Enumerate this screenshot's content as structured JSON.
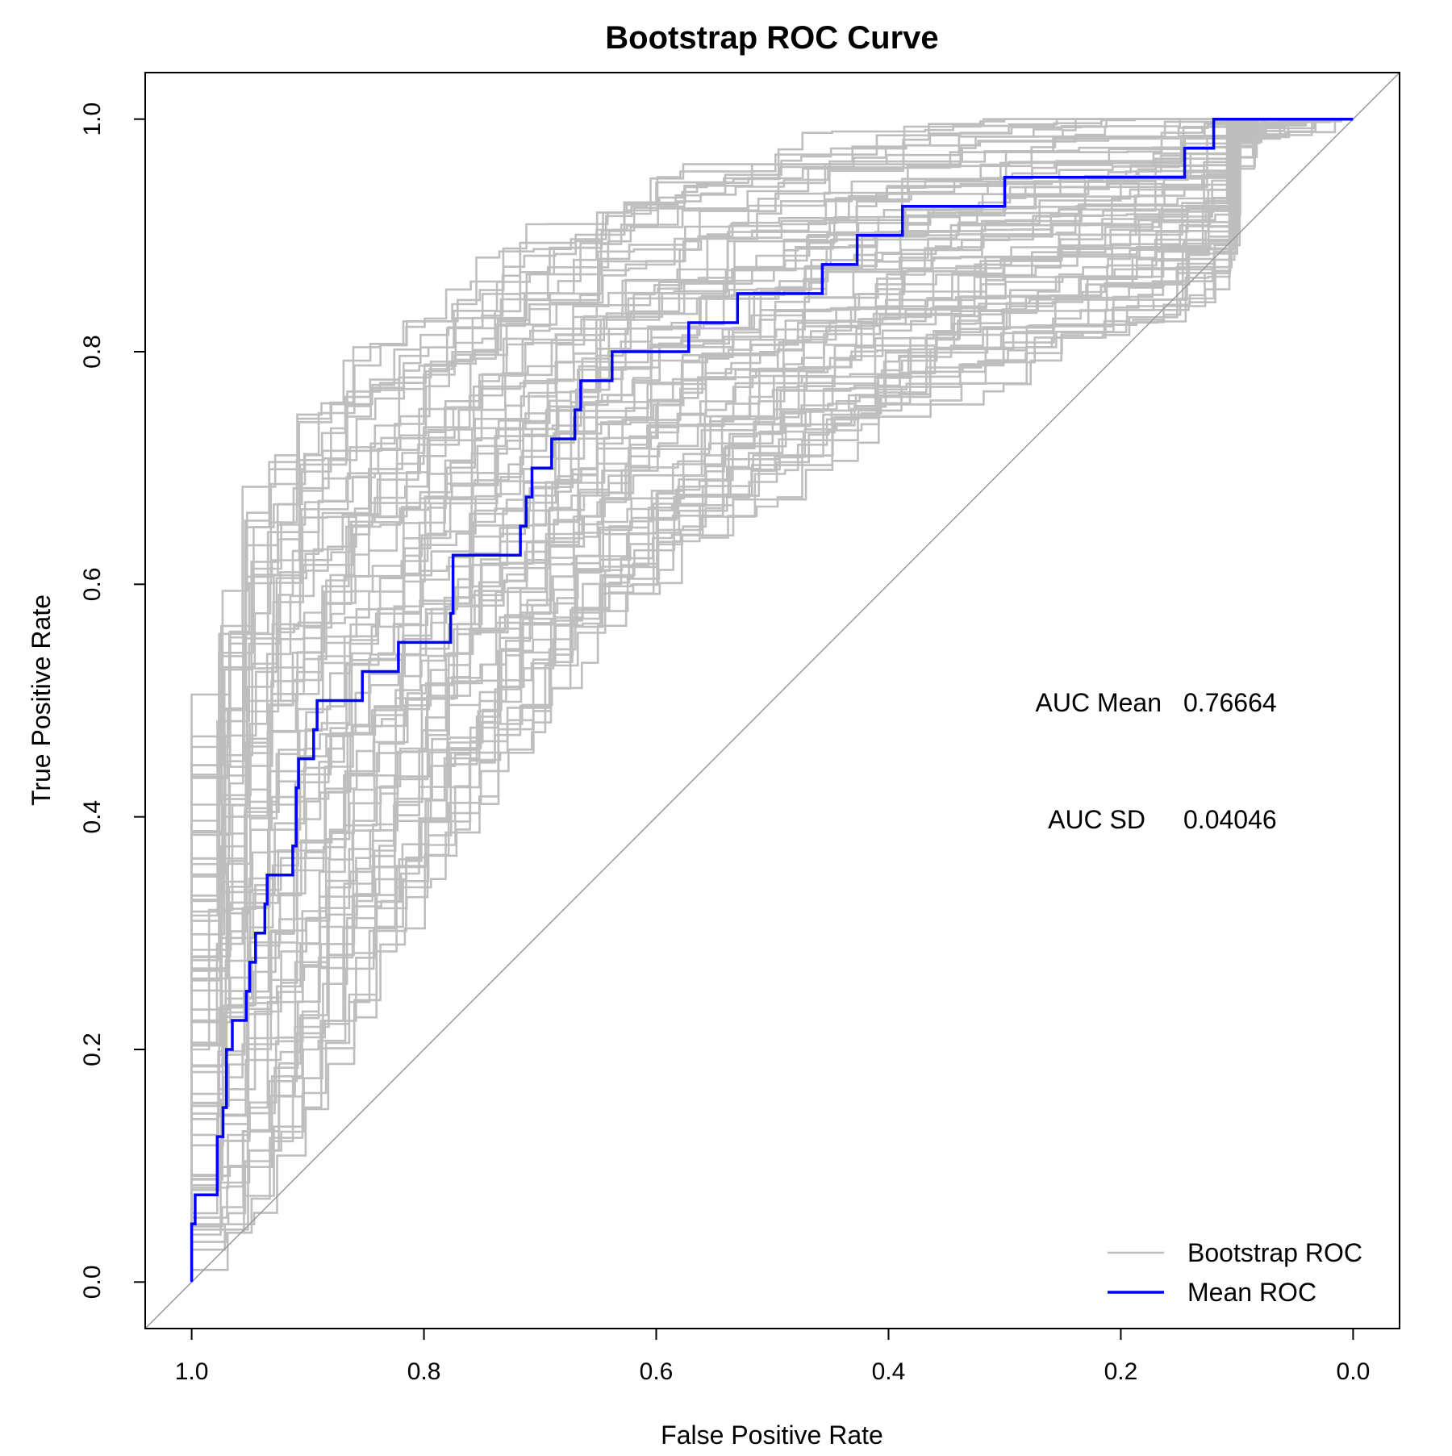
{
  "chart_data": {
    "type": "line",
    "title": "Bootstrap ROC Curve",
    "xlabel": "False Positive Rate",
    "ylabel": "True Positive Rate",
    "x_reversed": true,
    "xlim": [
      1.04,
      -0.04
    ],
    "ylim": [
      -0.04,
      1.04
    ],
    "x_ticks": [
      1.0,
      0.8,
      0.6,
      0.4,
      0.2,
      0.0
    ],
    "x_tick_labels": [
      "1.0",
      "0.8",
      "0.6",
      "0.4",
      "0.2",
      "0.0"
    ],
    "y_ticks": [
      0.0,
      0.2,
      0.4,
      0.6,
      0.8,
      1.0
    ],
    "y_tick_labels": [
      "0.0",
      "0.2",
      "0.4",
      "0.6",
      "0.8",
      "1.0"
    ],
    "grid": false,
    "legend_position": "bottom-right",
    "annotations": [
      {
        "label": "AUC Mean",
        "value": "0.76664"
      },
      {
        "label": "AUC SD",
        "value": "0.04046"
      }
    ],
    "reference_line": {
      "x": [
        1.04,
        -0.04
      ],
      "y": [
        -0.04,
        1.04
      ],
      "color": "#999999"
    },
    "bootstrap_summary": {
      "color": "#bebebe",
      "upper_envelope": {
        "x": [
          1.0,
          0.99,
          0.975,
          0.96,
          0.945,
          0.93,
          0.91,
          0.88,
          0.85,
          0.82,
          0.77,
          0.72,
          0.66,
          0.6,
          0.5,
          0.4,
          0.3,
          0.2,
          0.12,
          0.08
        ],
        "y": [
          0.0,
          0.3,
          0.45,
          0.55,
          0.62,
          0.68,
          0.72,
          0.76,
          0.79,
          0.81,
          0.84,
          0.88,
          0.91,
          0.94,
          0.96,
          0.98,
          0.99,
          1.0,
          1.0,
          1.0
        ]
      },
      "lower_envelope": {
        "x": [
          1.0,
          0.96,
          0.93,
          0.9,
          0.86,
          0.82,
          0.78,
          0.74,
          0.7,
          0.66,
          0.62,
          0.57,
          0.5,
          0.42,
          0.34,
          0.26,
          0.18,
          0.13,
          0.1,
          0.08
        ],
        "y": [
          0.0,
          0.02,
          0.06,
          0.12,
          0.2,
          0.28,
          0.35,
          0.41,
          0.47,
          0.53,
          0.57,
          0.62,
          0.67,
          0.72,
          0.76,
          0.79,
          0.82,
          0.84,
          0.87,
          1.0
        ]
      }
    },
    "series": [
      {
        "name": "Bootstrap ROC",
        "color": "#bebebe",
        "x": [
          1.0,
          0.985,
          0.965,
          0.95,
          0.935,
          0.915,
          0.895,
          0.87,
          0.84,
          0.805,
          0.77,
          0.73,
          0.69,
          0.645,
          0.595,
          0.54,
          0.48,
          0.41,
          0.34,
          0.27,
          0.2,
          0.14,
          0.1,
          0.085
        ],
        "y": [
          0.0,
          0.2,
          0.32,
          0.41,
          0.48,
          0.54,
          0.59,
          0.63,
          0.66,
          0.69,
          0.72,
          0.75,
          0.78,
          0.81,
          0.83,
          0.85,
          0.87,
          0.89,
          0.9,
          0.91,
          0.93,
          0.95,
          0.97,
          1.0
        ]
      },
      {
        "name": "Mean ROC",
        "color": "#0000ff",
        "x": [
          1.0,
          1.0,
          0.997,
          0.997,
          0.978,
          0.978,
          0.973,
          0.973,
          0.97,
          0.97,
          0.965,
          0.965,
          0.953,
          0.953,
          0.95,
          0.95,
          0.945,
          0.945,
          0.937,
          0.937,
          0.935,
          0.935,
          0.913,
          0.913,
          0.91,
          0.91,
          0.908,
          0.908,
          0.895,
          0.895,
          0.892,
          0.892,
          0.853,
          0.853,
          0.822,
          0.822,
          0.777,
          0.777,
          0.775,
          0.775,
          0.717,
          0.717,
          0.712,
          0.712,
          0.707,
          0.707,
          0.69,
          0.69,
          0.67,
          0.67,
          0.665,
          0.665,
          0.638,
          0.638,
          0.572,
          0.572,
          0.53,
          0.53,
          0.457,
          0.457,
          0.427,
          0.427,
          0.388,
          0.388,
          0.3,
          0.3,
          0.145,
          0.145,
          0.12,
          0.12,
          0.0
        ],
        "y": [
          0.0,
          0.05,
          0.05,
          0.075,
          0.075,
          0.125,
          0.125,
          0.15,
          0.15,
          0.2,
          0.2,
          0.225,
          0.225,
          0.25,
          0.25,
          0.275,
          0.275,
          0.3,
          0.3,
          0.325,
          0.325,
          0.35,
          0.35,
          0.375,
          0.375,
          0.425,
          0.425,
          0.45,
          0.45,
          0.475,
          0.475,
          0.5,
          0.5,
          0.525,
          0.525,
          0.55,
          0.55,
          0.575,
          0.575,
          0.625,
          0.625,
          0.65,
          0.65,
          0.675,
          0.675,
          0.7,
          0.7,
          0.725,
          0.725,
          0.75,
          0.75,
          0.775,
          0.775,
          0.8,
          0.8,
          0.825,
          0.825,
          0.85,
          0.85,
          0.875,
          0.875,
          0.9,
          0.9,
          0.925,
          0.925,
          0.95,
          0.95,
          0.975,
          0.975,
          1.0,
          1.0
        ]
      }
    ]
  }
}
